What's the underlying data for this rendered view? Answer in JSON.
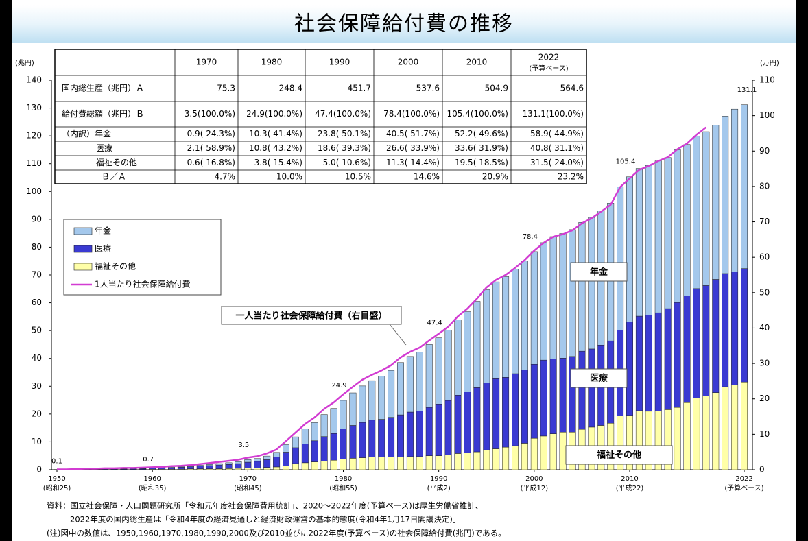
{
  "chart_data": {
    "type": "stacked_bar_line",
    "title": "社会保障給付費の推移",
    "y_unit": "(兆円)",
    "y2_unit": "(万円)",
    "ylim": [
      0,
      140
    ],
    "yticks": [
      0,
      10,
      20,
      30,
      40,
      50,
      60,
      70,
      80,
      90,
      100,
      110,
      120,
      130,
      140
    ],
    "y2lim": [
      0,
      110
    ],
    "y2ticks": [
      0,
      10,
      20,
      30,
      40,
      50,
      60,
      70,
      80,
      90,
      100,
      110
    ],
    "xlim": [
      1950,
      2022
    ],
    "xticks": [
      1950,
      1960,
      1970,
      1980,
      1990,
      2000,
      2010,
      2022
    ],
    "xtick_sublabels": [
      "(昭和25)",
      "(昭和35)",
      "(昭和45)",
      "(昭和55)",
      "(平成2)",
      "(平成12)",
      "(平成22)",
      "(予算ベース)"
    ],
    "x": [
      1950,
      1951,
      1952,
      1953,
      1954,
      1955,
      1956,
      1957,
      1958,
      1959,
      1960,
      1961,
      1962,
      1963,
      1964,
      1965,
      1966,
      1967,
      1968,
      1969,
      1970,
      1971,
      1972,
      1973,
      1974,
      1975,
      1976,
      1977,
      1978,
      1979,
      1980,
      1981,
      1982,
      1983,
      1984,
      1985,
      1986,
      1987,
      1988,
      1989,
      1990,
      1991,
      1992,
      1993,
      1994,
      1995,
      1996,
      1997,
      1998,
      1999,
      2000,
      2001,
      2002,
      2003,
      2004,
      2005,
      2006,
      2007,
      2008,
      2009,
      2010,
      2011,
      2012,
      2013,
      2014,
      2015,
      2016,
      2017,
      2018,
      2019,
      2020,
      2021,
      2022
    ],
    "series": [
      {
        "name": "年金",
        "color": "#a4c8ec",
        "values": [
          0,
          0,
          0,
          0,
          0,
          0.1,
          0.1,
          0.1,
          0.1,
          0.1,
          0.1,
          0.1,
          0.2,
          0.2,
          0.2,
          0.3,
          0.4,
          0.5,
          0.6,
          0.7,
          0.9,
          1.0,
          1.3,
          1.6,
          2.7,
          3.9,
          5.3,
          6.5,
          7.9,
          9.0,
          10.3,
          11.7,
          13.1,
          14.2,
          15.5,
          16.9,
          18.8,
          20.0,
          21.2,
          22.6,
          23.8,
          25.2,
          27.0,
          28.8,
          31.0,
          33.5,
          34.8,
          36.2,
          37.6,
          39.2,
          40.5,
          42.2,
          44.0,
          44.8,
          45.6,
          46.3,
          47.3,
          48.3,
          49.5,
          51.5,
          52.2,
          53.1,
          53.8,
          54.6,
          54.3,
          54.9,
          54.4,
          54.8,
          55.3,
          55.5,
          56.6,
          58.5,
          58.9
        ]
      },
      {
        "name": "医療",
        "color": "#3a3ad2",
        "values": [
          0.1,
          0.1,
          0.1,
          0.2,
          0.2,
          0.2,
          0.2,
          0.2,
          0.3,
          0.3,
          0.4,
          0.5,
          0.5,
          0.7,
          0.8,
          1.0,
          1.2,
          1.4,
          1.5,
          1.7,
          2.1,
          2.4,
          2.8,
          3.6,
          4.9,
          5.7,
          6.8,
          7.6,
          8.8,
          9.6,
          10.8,
          11.8,
          12.7,
          13.3,
          13.6,
          14.3,
          15.1,
          16.0,
          16.4,
          17.4,
          18.6,
          19.6,
          21.0,
          21.9,
          23.1,
          24.1,
          25.2,
          25.1,
          25.9,
          26.3,
          26.6,
          27.3,
          26.9,
          26.6,
          27.2,
          28.1,
          28.1,
          28.9,
          29.6,
          30.8,
          33.6,
          34.0,
          34.6,
          35.3,
          36.3,
          37.7,
          38.4,
          39.4,
          39.7,
          40.7,
          40.7,
          40.6,
          40.8
        ]
      },
      {
        "name": "福祉その他",
        "color": "#ffffa8",
        "values": [
          0,
          0,
          0.1,
          0.1,
          0.1,
          0.1,
          0.1,
          0.1,
          0.1,
          0.1,
          0.2,
          0.2,
          0.2,
          0.2,
          0.3,
          0.3,
          0.3,
          0.3,
          0.4,
          0.5,
          0.6,
          0.6,
          0.8,
          1.0,
          1.4,
          2.2,
          2.5,
          2.8,
          3.1,
          3.4,
          3.8,
          4.1,
          4.3,
          4.5,
          4.5,
          4.5,
          4.6,
          4.7,
          4.7,
          5.0,
          5.0,
          5.3,
          5.8,
          6.1,
          6.4,
          7.1,
          7.5,
          8.1,
          8.6,
          9.5,
          11.3,
          12.1,
          12.9,
          13.5,
          13.5,
          14.5,
          15.3,
          15.9,
          16.7,
          19.4,
          19.5,
          21.2,
          21.0,
          21.1,
          21.6,
          22.4,
          24.1,
          25.7,
          26.5,
          27.7,
          29.8,
          30.5,
          31.5
        ]
      },
      {
        "name": "1人当たり社会保障給付費",
        "color": "#d23cd2",
        "axis": "y2",
        "values": [
          0.1,
          0.1,
          0.2,
          0.3,
          0.3,
          0.4,
          0.4,
          0.5,
          0.5,
          0.6,
          0.7,
          0.8,
          1.0,
          1.1,
          1.3,
          1.6,
          1.9,
          2.2,
          2.5,
          2.8,
          3.4,
          3.8,
          4.6,
          5.7,
          8.1,
          10.5,
          12.9,
          14.8,
          17.2,
          19.0,
          21.3,
          23.4,
          25.4,
          26.8,
          28.0,
          29.5,
          31.7,
          33.3,
          34.5,
          36.5,
          38.4,
          40.4,
          43.3,
          45.5,
          48.3,
          51.5,
          53.6,
          55.0,
          57.0,
          59.2,
          61.9,
          64.1,
          65.8,
          66.5,
          67.6,
          69.6,
          71.0,
          72.9,
          74.8,
          79.8,
          82.3,
          84.7,
          85.8,
          87.2,
          88.3,
          90.5,
          92.1,
          94.6,
          96.7,
          null,
          null,
          null,
          null
        ]
      }
    ],
    "total_labels": [
      {
        "x": 1950,
        "value": 0.1
      },
      {
        "x": 1960,
        "value": 0.7
      },
      {
        "x": 1970,
        "value": 3.5
      },
      {
        "x": 1980,
        "value": 24.9
      },
      {
        "x": 1990,
        "value": 47.4
      },
      {
        "x": 2000,
        "value": 78.4
      },
      {
        "x": 2010,
        "value": 105.4
      },
      {
        "x": 2022,
        "value": 131.1
      }
    ],
    "annotation": "一人当たり社会保障給付費（右目盛）",
    "segment_labels": [
      "年金",
      "医療",
      "福祉その他"
    ],
    "legend": "upper left",
    "table": {
      "header": [
        "1970",
        "1980",
        "1990",
        "2000",
        "2010",
        "2022"
      ],
      "header_note": "(予算ベース)",
      "rows": [
        {
          "label": "国内総生産（兆円）Ａ",
          "cells": [
            "75.3",
            "248.4",
            "451.7",
            "537.6",
            "504.9",
            "564.6"
          ]
        },
        {
          "label": "給付費総額（兆円）Ｂ",
          "cells": [
            "3.5(100.0%)",
            "24.9(100.0%)",
            "47.4(100.0%)",
            "78.4(100.0%)",
            "105.4(100.0%)",
            "131.1(100.0%)"
          ]
        },
        {
          "label": "（内訳）年金",
          "cells": [
            "0.9( 24.3%)",
            "10.3( 41.4%)",
            "23.8( 50.1%)",
            "40.5( 51.7%)",
            "52.2( 49.6%)",
            "58.9( 44.9%)"
          ]
        },
        {
          "label": "医療",
          "cells": [
            "2.1( 58.9%)",
            "10.8( 43.2%)",
            "18.6( 39.3%)",
            "26.6( 33.9%)",
            "33.6( 31.9%)",
            "40.8( 31.1%)"
          ]
        },
        {
          "label": "福祉その他",
          "cells": [
            "0.6( 16.8%)",
            "3.8( 15.4%)",
            "5.0( 10.6%)",
            "11.3( 14.4%)",
            "19.5( 18.5%)",
            "31.5( 24.0%)"
          ]
        },
        {
          "label": "Ｂ／Ａ",
          "cells": [
            "4.7%",
            "10.0%",
            "10.5%",
            "14.6%",
            "20.9%",
            "23.2%"
          ]
        }
      ]
    },
    "notes": [
      "資料：国立社会保障・人口問題研究所「令和元年度社会保障費用統計」、2020～2022年度(予算ベース)は厚生労働省推計、",
      "2022年度の国内総生産は「令和4年度の経済見通しと経済財政運営の基本的態度(令和4年1月17日閣議決定)」",
      "(注)図中の数値は、1950,1960,1970,1980,1990,2000及び2010並びに2022年度(予算ベース)の社会保障給付費(兆円)である。"
    ]
  }
}
